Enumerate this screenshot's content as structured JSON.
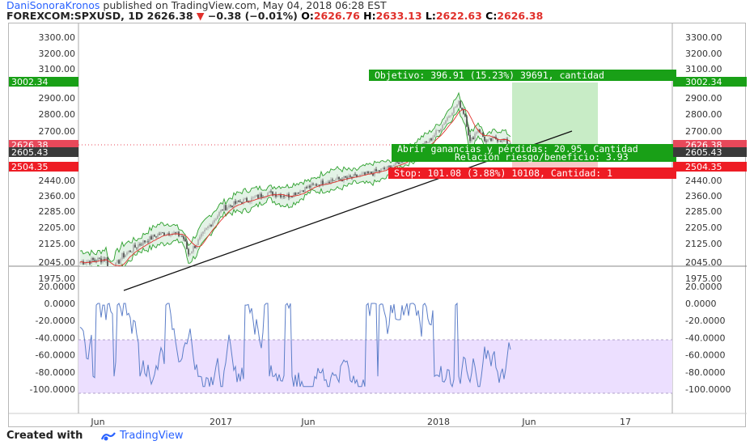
{
  "header": {
    "author": "DaniSonoraKronos",
    "published": " published on TradingView.com, May 04, 2018 06:28 EST",
    "symbol": "FOREXCOM:SPXUSD, 1D",
    "last": "2626.38",
    "change_icon": "triangle-down-icon",
    "change": "−0.38 (−0.01%)",
    "o_label": "O:",
    "o_val": "2626.76",
    "h_label": "H:",
    "h_val": "2633.13",
    "l_label": "L:",
    "l_val": "2622.63",
    "c_label": "C:",
    "c_val": "2626.38"
  },
  "colors": {
    "up_candle": "#aaaaaa",
    "down_candle": "#444444",
    "band": "#2ca02c",
    "band_fill": "#e3f2e6",
    "sma": "#e0302b",
    "oscillator": "#5c7ec8",
    "oscillator_zone": "#ecdfff",
    "profit_zone": "#c8ecc6",
    "loss_zone": "#f7c8c8",
    "target_label": "#19a017",
    "stop_label": "#ee1c24",
    "price_label": "#e8485a",
    "dark_label": "#3a3a3a",
    "brand": "#2962ff"
  },
  "price_axis": {
    "ticks": [
      "3300.00",
      "3200.00",
      "3100.00",
      "2900.00",
      "2800.00",
      "2700.00",
      "2440.00",
      "2360.00",
      "2285.00",
      "2205.00",
      "2125.00",
      "2045.00",
      "1975.00"
    ],
    "markers": [
      {
        "value": "3002.34",
        "kind": "target"
      },
      {
        "value": "2626.38",
        "kind": "last"
      },
      {
        "value": "2605.43",
        "kind": "entry"
      },
      {
        "value": "2504.35",
        "kind": "stop"
      }
    ]
  },
  "osc_axis": {
    "ticks": [
      "20.0000",
      "0.0000",
      "-20.0000",
      "-40.0000",
      "-60.0000",
      "-80.0000",
      "-100.0000"
    ]
  },
  "time_axis": {
    "labels": [
      "Jun",
      "2017",
      "Jun",
      "2018",
      "Jun",
      "17"
    ]
  },
  "position": {
    "target": "Objetivo: 396.91 (15.23%) 39691, cantidad",
    "open": "Abrir ganancias y pérdidas: 20.95, Cantidad",
    "rr": "Relación riesgo/beneficio: 3.93",
    "stop": "Stop: 101.08 (3.88%) 10108, Cantidad: 1"
  },
  "footer": {
    "created": "Created with",
    "logo_icon": "tradingview-logo-icon",
    "brand": "TradingView"
  }
}
